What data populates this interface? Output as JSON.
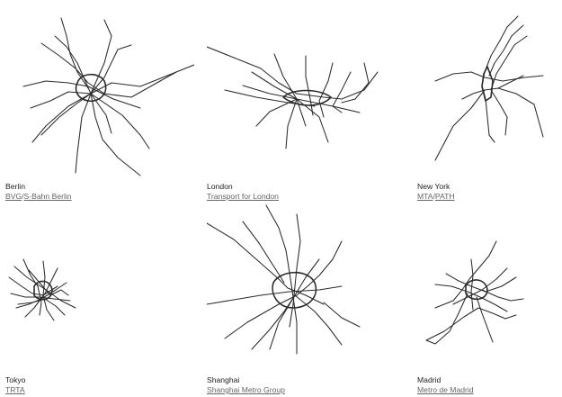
{
  "cities": [
    {
      "name": "Berlin",
      "links": [
        "BVG",
        "S-Bahn Berlin"
      ],
      "separator": "/"
    },
    {
      "name": "London",
      "links": [
        "Transport for London"
      ]
    },
    {
      "name": "New York",
      "links": [
        "MTA",
        "PATH"
      ],
      "separator": "/"
    },
    {
      "name": "Tokyo",
      "links": [
        "TRTA"
      ]
    },
    {
      "name": "Shanghai",
      "links": [
        "Shanghai Metro Group"
      ]
    },
    {
      "name": "Madrid",
      "links": [
        "Metro de Madrid"
      ]
    }
  ]
}
